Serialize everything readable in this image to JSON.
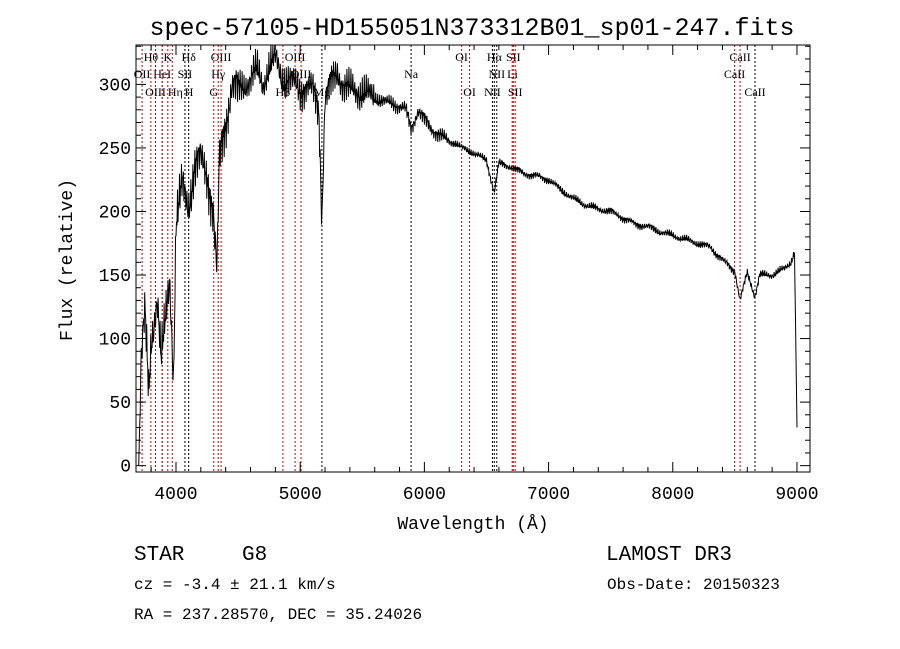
{
  "chart_data": {
    "type": "line",
    "title": "spec-57105-HD155051N373312B01_sp01-247.fits",
    "xlabel": "Wavelength (Å)",
    "ylabel": "Flux (relative)",
    "xlim": [
      3678,
      9105
    ],
    "ylim": [
      -5,
      331
    ],
    "x_ticks": [
      4000,
      5000,
      6000,
      7000,
      8000,
      9000
    ],
    "y_ticks": [
      0,
      50,
      100,
      150,
      200,
      250,
      300
    ],
    "grid": false,
    "series": [
      {
        "name": "spectrum",
        "x": [
          3700,
          3720,
          3750,
          3780,
          3800,
          3850,
          3880,
          3900,
          3950,
          3980,
          4000,
          4050,
          4100,
          4150,
          4200,
          4250,
          4300,
          4330,
          4350,
          4400,
          4450,
          4500,
          4550,
          4600,
          4650,
          4700,
          4750,
          4800,
          4850,
          4900,
          4950,
          5000,
          5050,
          5100,
          5150,
          5175,
          5200,
          5250,
          5300,
          5350,
          5400,
          5450,
          5500,
          5550,
          5600,
          5650,
          5700,
          5750,
          5800,
          5850,
          5893,
          5950,
          6000,
          6050,
          6100,
          6150,
          6200,
          6250,
          6300,
          6350,
          6400,
          6450,
          6500,
          6563,
          6600,
          6700,
          6800,
          6900,
          7000,
          7100,
          7200,
          7300,
          7400,
          7500,
          7600,
          7700,
          7800,
          7900,
          8000,
          8100,
          8200,
          8300,
          8400,
          8500,
          8542,
          8600,
          8662,
          8700,
          8800,
          8900,
          8950,
          8980,
          9000
        ],
        "y": [
          0,
          80,
          120,
          60,
          100,
          130,
          80,
          100,
          150,
          70,
          190,
          220,
          205,
          235,
          240,
          230,
          200,
          150,
          240,
          270,
          300,
          295,
          300,
          305,
          310,
          300,
          315,
          320,
          305,
          305,
          300,
          295,
          300,
          295,
          280,
          195,
          290,
          300,
          310,
          300,
          295,
          295,
          295,
          290,
          290,
          288,
          285,
          285,
          283,
          280,
          265,
          280,
          272,
          266,
          262,
          258,
          255,
          254,
          250,
          248,
          246,
          243,
          240,
          215,
          238,
          235,
          230,
          228,
          225,
          217,
          210,
          205,
          202,
          200,
          195,
          190,
          188,
          184,
          181,
          178,
          175,
          172,
          162,
          153,
          130,
          152,
          133,
          150,
          150,
          155,
          160,
          168,
          30
        ]
      }
    ],
    "line_markers": [
      {
        "label": "Hθ",
        "wavelength": 3798,
        "row": 1,
        "color": "#cc0000"
      },
      {
        "label": "K",
        "wavelength": 3934,
        "row": 1,
        "color": "#cc0000"
      },
      {
        "label": "Hδ",
        "wavelength": 4102,
        "row": 1,
        "color": "#000000"
      },
      {
        "label": "OIII",
        "wavelength": 4363,
        "row": 1,
        "color": "#cc0000"
      },
      {
        "label": "OIII",
        "wavelength": 4959,
        "row": 1,
        "color": "#cc0000"
      },
      {
        "label": "OI",
        "wavelength": 6300,
        "row": 1,
        "color": "#cc0000"
      },
      {
        "label": "Hα",
        "wavelength": 6563,
        "row": 1,
        "color": "#000000"
      },
      {
        "label": "SII",
        "wavelength": 6716,
        "row": 1,
        "color": "#cc0000"
      },
      {
        "label": "CaII",
        "wavelength": 8542,
        "row": 1,
        "color": "#cc0000"
      },
      {
        "label": "OII",
        "wavelength": 3727,
        "row": 2,
        "color": "#cc0000"
      },
      {
        "label": "HeI",
        "wavelength": 3889,
        "row": 2,
        "color": "#cc0000"
      },
      {
        "label": "SII",
        "wavelength": 4072,
        "row": 2,
        "color": "#000000"
      },
      {
        "label": "Hγ",
        "wavelength": 4340,
        "row": 2,
        "color": "#cc0000"
      },
      {
        "label": "OIII",
        "wavelength": 5007,
        "row": 2,
        "color": "#cc0000"
      },
      {
        "label": "Na",
        "wavelength": 5893,
        "row": 2,
        "color": "#000000"
      },
      {
        "label": "NII",
        "wavelength": 6583,
        "row": 2,
        "color": "#000000"
      },
      {
        "label": "Li",
        "wavelength": 6707,
        "row": 2,
        "color": "#cc0000"
      },
      {
        "label": "CaII",
        "wavelength": 8498,
        "row": 2,
        "color": "#cc0000"
      },
      {
        "label": "OIII",
        "wavelength": 3835,
        "row": 3,
        "color": "#cc0000"
      },
      {
        "label": "Hη",
        "wavelength": 3889,
        "row": 3,
        "color": "#cc0000"
      },
      {
        "label": "H",
        "wavelength": 3970,
        "row": 3,
        "color": "#cc0000"
      },
      {
        "label": "G",
        "wavelength": 4304,
        "row": 3,
        "color": "#cc0000"
      },
      {
        "label": "Hβ",
        "wavelength": 4861,
        "row": 3,
        "color": "#cc0000"
      },
      {
        "label": "Mg",
        "wavelength": 5175,
        "row": 3,
        "color": "#000000"
      },
      {
        "label": "OI",
        "wavelength": 6364,
        "row": 3,
        "color": "#cc0000"
      },
      {
        "label": "NII",
        "wavelength": 6548,
        "row": 3,
        "color": "#000000"
      },
      {
        "label": "SII",
        "wavelength": 6731,
        "row": 3,
        "color": "#cc0000"
      },
      {
        "label": "CaII",
        "wavelength": 8662,
        "row": 3,
        "color": "#000000"
      }
    ]
  },
  "info": {
    "class": "STAR",
    "subclass": "G8",
    "cz": "cz = -3.4 ± 21.1 km/s",
    "radec": "RA = 237.28570, DEC =  35.24026",
    "survey": "LAMOST DR3",
    "obs_date": "Obs-Date: 20150323"
  }
}
